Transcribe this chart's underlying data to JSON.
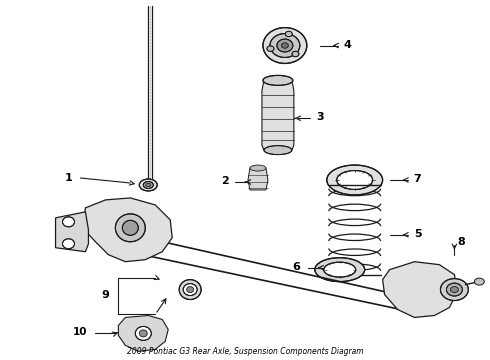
{
  "title": "2009 Pontiac G3 Rear Axle, Suspension Components Diagram",
  "bg_color": "#ffffff",
  "line_color": "#1a1a1a",
  "text_color": "#000000",
  "fig_width": 4.9,
  "fig_height": 3.6,
  "dpi": 100
}
